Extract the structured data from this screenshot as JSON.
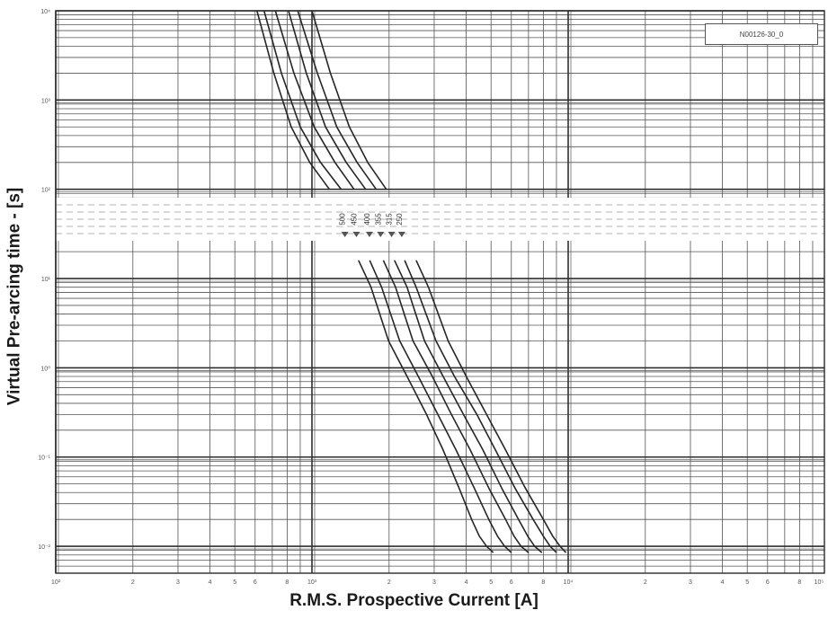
{
  "chart_data": {
    "type": "line",
    "title": "",
    "xlabel": "R.M.S. Prospective Current [A]",
    "ylabel": "Virtual Pre-arcing time - [s]",
    "x_scale": "log",
    "y_scale": "log",
    "xlim": [
      100,
      100000
    ],
    "ylim": [
      0.005,
      10000
    ],
    "grid": true,
    "reference_label": "N00126-30_0",
    "x_decade_labels": [
      "10²",
      "10³",
      "10⁴",
      "10⁵"
    ],
    "y_decade_labels": [
      "10⁴",
      "10³",
      "10²",
      "10¹",
      "10⁰",
      "10⁻¹",
      "10⁻²"
    ],
    "minor_tick_labels": [
      "2",
      "3",
      "4",
      "5",
      "6",
      "8"
    ],
    "series": [
      {
        "name": "250",
        "points": [
          [
            1000,
            10000
          ],
          [
            1180,
            2000
          ],
          [
            1400,
            500
          ],
          [
            1650,
            200
          ],
          [
            1950,
            100
          ],
          [
            2300,
            40
          ],
          [
            2550,
            16
          ],
          [
            2850,
            8
          ],
          [
            3400,
            2
          ],
          [
            4000,
            0.8
          ],
          [
            4800,
            0.3
          ],
          [
            5700,
            0.12
          ],
          [
            6800,
            0.045
          ],
          [
            8000,
            0.02
          ],
          [
            8700,
            0.013
          ],
          [
            9300,
            0.01
          ],
          [
            9800,
            0.0085
          ]
        ]
      },
      {
        "name": "315",
        "points": [
          [
            880,
            10000
          ],
          [
            1050,
            2000
          ],
          [
            1250,
            500
          ],
          [
            1500,
            200
          ],
          [
            1780,
            100
          ],
          [
            2100,
            40
          ],
          [
            2300,
            16
          ],
          [
            2550,
            8
          ],
          [
            3050,
            2
          ],
          [
            3600,
            0.8
          ],
          [
            4400,
            0.3
          ],
          [
            5200,
            0.12
          ],
          [
            6200,
            0.045
          ],
          [
            7300,
            0.02
          ],
          [
            8000,
            0.013
          ],
          [
            8500,
            0.01
          ],
          [
            9000,
            0.0085
          ]
        ]
      },
      {
        "name": "355",
        "points": [
          [
            810,
            10000
          ],
          [
            950,
            2000
          ],
          [
            1130,
            500
          ],
          [
            1360,
            200
          ],
          [
            1620,
            100
          ],
          [
            1900,
            40
          ],
          [
            2100,
            16
          ],
          [
            2350,
            8
          ],
          [
            2750,
            2
          ],
          [
            3250,
            0.8
          ],
          [
            3900,
            0.3
          ],
          [
            4650,
            0.12
          ],
          [
            5500,
            0.045
          ],
          [
            6400,
            0.02
          ],
          [
            6950,
            0.013
          ],
          [
            7400,
            0.01
          ],
          [
            7900,
            0.0085
          ]
        ]
      },
      {
        "name": "400",
        "points": [
          [
            720,
            10000
          ],
          [
            850,
            2000
          ],
          [
            1020,
            500
          ],
          [
            1230,
            200
          ],
          [
            1460,
            100
          ],
          [
            1720,
            40
          ],
          [
            1900,
            16
          ],
          [
            2120,
            8
          ],
          [
            2480,
            2
          ],
          [
            2950,
            0.8
          ],
          [
            3500,
            0.3
          ],
          [
            4150,
            0.12
          ],
          [
            4900,
            0.045
          ],
          [
            5700,
            0.02
          ],
          [
            6150,
            0.013
          ],
          [
            6550,
            0.01
          ],
          [
            7000,
            0.0085
          ]
        ]
      },
      {
        "name": "450",
        "points": [
          [
            650,
            10000
          ],
          [
            760,
            2000
          ],
          [
            900,
            500
          ],
          [
            1080,
            200
          ],
          [
            1300,
            100
          ],
          [
            1530,
            40
          ],
          [
            1680,
            16
          ],
          [
            1870,
            8
          ],
          [
            2200,
            2
          ],
          [
            2600,
            0.8
          ],
          [
            3100,
            0.3
          ],
          [
            3650,
            0.12
          ],
          [
            4300,
            0.045
          ],
          [
            4900,
            0.02
          ],
          [
            5300,
            0.013
          ],
          [
            5650,
            0.01
          ],
          [
            6000,
            0.0085
          ]
        ]
      },
      {
        "name": "500",
        "points": [
          [
            610,
            10000
          ],
          [
            710,
            2000
          ],
          [
            830,
            500
          ],
          [
            980,
            200
          ],
          [
            1170,
            100
          ],
          [
            1380,
            40
          ],
          [
            1520,
            16
          ],
          [
            1700,
            8
          ],
          [
            1990,
            2
          ],
          [
            2350,
            0.8
          ],
          [
            2800,
            0.3
          ],
          [
            3250,
            0.12
          ],
          [
            3750,
            0.045
          ],
          [
            4200,
            0.02
          ],
          [
            4500,
            0.013
          ],
          [
            4800,
            0.01
          ],
          [
            5100,
            0.0085
          ]
        ]
      }
    ]
  }
}
